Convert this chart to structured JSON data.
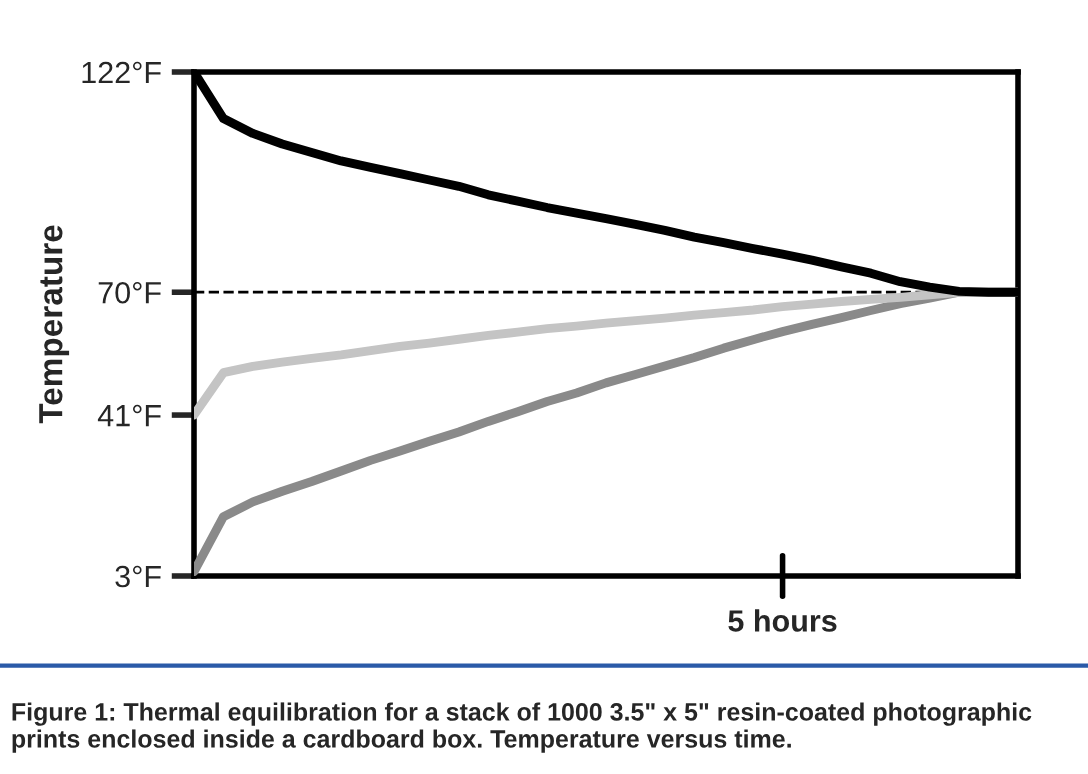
{
  "chart_data": {
    "type": "line",
    "ylabel": "Temperature",
    "categories": [
      null,
      null,
      null,
      null,
      null,
      null,
      null,
      null,
      null,
      null,
      null,
      null,
      null,
      null,
      null,
      null,
      null,
      null,
      null,
      null,
      "5 hours",
      null,
      null,
      null,
      null,
      null,
      null,
      null,
      null
    ],
    "ylim": [
      3,
      122
    ],
    "yticks": [
      {
        "value": 3,
        "label": "3°F"
      },
      {
        "value": 41,
        "label": "41°F"
      },
      {
        "value": 70,
        "label": "70°F"
      },
      {
        "value": 122,
        "label": "122°F"
      }
    ],
    "grid": false,
    "legend": false,
    "marker": "none",
    "line_style": "solid",
    "ref_lines": [
      {
        "axis": "y",
        "value": 70,
        "color": "#000000",
        "line_style": "dashed"
      }
    ],
    "series": [
      {
        "color": "#000000",
        "values": [
          122,
          111,
          107.5,
          105,
          103,
          101,
          99.5,
          98,
          96.5,
          95,
          93,
          91.5,
          90,
          88.7,
          87.4,
          86,
          84.6,
          83,
          81.7,
          80.3,
          79,
          77.6,
          76,
          74.5,
          72.5,
          71.2,
          70.2,
          70,
          70
        ]
      },
      {
        "color": "#c4c4c4",
        "values": [
          41,
          51,
          52.5,
          53.5,
          54.4,
          55.2,
          56.2,
          57.2,
          58,
          58.9,
          59.8,
          60.6,
          61.4,
          62,
          62.7,
          63.3,
          63.9,
          64.6,
          65.2,
          65.8,
          66.6,
          67.2,
          67.8,
          68.3,
          68.8,
          69.4,
          70,
          70,
          70
        ]
      },
      {
        "color": "#8a8a8a",
        "values": [
          4,
          17,
          20.5,
          23,
          25.3,
          27.8,
          30.3,
          32.5,
          34.8,
          37,
          39.5,
          41.8,
          44.2,
          46.2,
          48.6,
          50.6,
          52.6,
          54.6,
          56.8,
          58.8,
          60.7,
          62.4,
          64,
          65.7,
          67.3,
          68.6,
          70,
          70,
          70
        ]
      }
    ],
    "annotations": [
      "Figure 1: Thermal equilibration for a stack of 1000 3.5\" x 5\" resin-coated photographic prints enclosed inside a cardboard box. Temperature versus time."
    ]
  }
}
